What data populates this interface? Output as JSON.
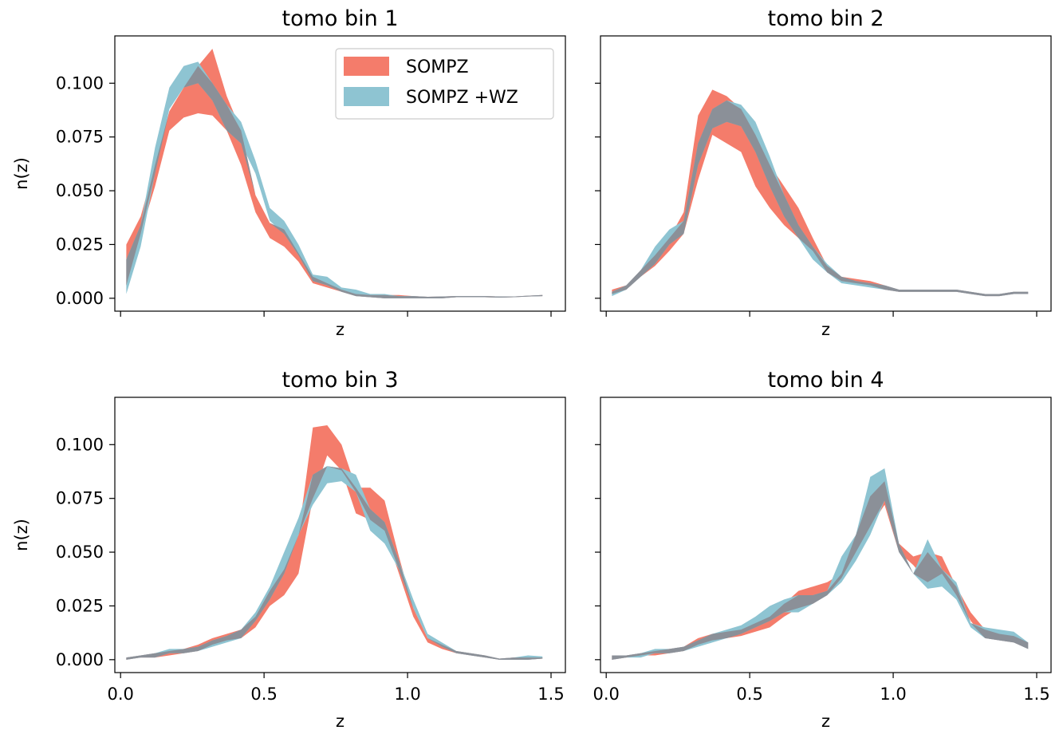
{
  "chart_data": {
    "type": "area",
    "colors": {
      "SOMPZ": "#f47c6b",
      "SOMPZ +WZ": "#8ec4d2",
      "overlap": "#8b9098"
    },
    "legend": {
      "placement": "top-right",
      "panel": 0,
      "entries": [
        "SOMPZ",
        "SOMPZ +WZ"
      ]
    },
    "z": [
      0.02,
      0.07,
      0.12,
      0.17,
      0.22,
      0.27,
      0.32,
      0.37,
      0.42,
      0.47,
      0.52,
      0.57,
      0.62,
      0.67,
      0.72,
      0.77,
      0.82,
      0.87,
      0.92,
      0.97,
      1.02,
      1.07,
      1.12,
      1.17,
      1.22,
      1.27,
      1.32,
      1.37,
      1.42,
      1.47
    ],
    "xticks": [
      "0.0",
      "0.5",
      "1.0",
      "1.5"
    ],
    "xtick_values": [
      0.0,
      0.5,
      1.0,
      1.5
    ],
    "xlim": [
      -0.02,
      1.55
    ],
    "ylim": [
      -0.006,
      0.122
    ],
    "yticks": [
      "0.000",
      "0.025",
      "0.050",
      "0.075",
      "0.100"
    ],
    "ytick_values": [
      0.0,
      0.025,
      0.05,
      0.075,
      0.1
    ],
    "panels": [
      {
        "title": "tomo bin 1",
        "xlabel": "z",
        "ylabel": "n(z)",
        "series": [
          {
            "name": "SOMPZ",
            "lower": [
              0.006,
              0.03,
              0.052,
              0.078,
              0.084,
              0.086,
              0.085,
              0.078,
              0.062,
              0.04,
              0.028,
              0.024,
              0.017,
              0.007,
              0.005,
              0.003,
              0.001,
              0.0005,
              0.0,
              0.0,
              0.0,
              0.0,
              0.0,
              0.0005,
              0.0005,
              0.0005,
              0.0003,
              0.0005,
              0.0008,
              0.001
            ],
            "upper": [
              0.025,
              0.038,
              0.062,
              0.087,
              0.098,
              0.108,
              0.116,
              0.094,
              0.078,
              0.048,
              0.035,
              0.032,
              0.021,
              0.01,
              0.007,
              0.004,
              0.002,
              0.0015,
              0.0015,
              0.0015,
              0.001,
              0.0007,
              0.0008,
              0.001,
              0.001,
              0.001,
              0.0008,
              0.0008,
              0.0012,
              0.0015
            ]
          },
          {
            "name": "SOMPZ +WZ",
            "lower": [
              0.002,
              0.024,
              0.058,
              0.088,
              0.098,
              0.1,
              0.092,
              0.078,
              0.072,
              0.058,
              0.036,
              0.03,
              0.02,
              0.008,
              0.006,
              0.003,
              0.001,
              0.0005,
              0.0,
              0.0,
              0.0,
              0.0,
              0.0,
              0.0005,
              0.0005,
              0.0005,
              0.0003,
              0.0005,
              0.0008,
              0.001
            ],
            "upper": [
              0.018,
              0.034,
              0.07,
              0.098,
              0.108,
              0.11,
              0.1,
              0.09,
              0.082,
              0.064,
              0.042,
              0.036,
              0.025,
              0.011,
              0.01,
              0.005,
              0.004,
              0.002,
              0.002,
              0.001,
              0.001,
              0.0007,
              0.0008,
              0.001,
              0.001,
              0.001,
              0.0008,
              0.0008,
              0.0012,
              0.0015
            ]
          }
        ]
      },
      {
        "title": "tomo bin 2",
        "xlabel": "z",
        "ylabel": "",
        "series": [
          {
            "name": "SOMPZ",
            "lower": [
              0.002,
              0.004,
              0.01,
              0.015,
              0.022,
              0.03,
              0.055,
              0.076,
              0.072,
              0.068,
              0.052,
              0.042,
              0.034,
              0.028,
              0.022,
              0.012,
              0.008,
              0.007,
              0.006,
              0.004,
              0.003,
              0.003,
              0.003,
              0.003,
              0.003,
              0.002,
              0.001,
              0.001,
              0.002,
              0.002
            ],
            "upper": [
              0.004,
              0.006,
              0.013,
              0.02,
              0.028,
              0.04,
              0.085,
              0.097,
              0.094,
              0.088,
              0.076,
              0.062,
              0.052,
              0.042,
              0.028,
              0.015,
              0.01,
              0.009,
              0.008,
              0.006,
              0.004,
              0.004,
              0.004,
              0.004,
              0.004,
              0.003,
              0.002,
              0.002,
              0.003,
              0.003
            ]
          },
          {
            "name": "SOMPZ +WZ",
            "lower": [
              0.001,
              0.004,
              0.01,
              0.016,
              0.025,
              0.03,
              0.062,
              0.079,
              0.082,
              0.08,
              0.068,
              0.052,
              0.038,
              0.028,
              0.018,
              0.012,
              0.007,
              0.006,
              0.005,
              0.004,
              0.003,
              0.003,
              0.003,
              0.003,
              0.003,
              0.002,
              0.001,
              0.001,
              0.002,
              0.002
            ],
            "upper": [
              0.003,
              0.006,
              0.013,
              0.024,
              0.032,
              0.036,
              0.072,
              0.088,
              0.092,
              0.09,
              0.082,
              0.066,
              0.048,
              0.034,
              0.024,
              0.016,
              0.01,
              0.008,
              0.007,
              0.006,
              0.004,
              0.004,
              0.004,
              0.004,
              0.004,
              0.003,
              0.002,
              0.002,
              0.003,
              0.003
            ]
          }
        ]
      },
      {
        "title": "tomo bin 3",
        "xlabel": "z",
        "ylabel": "n(z)",
        "series": [
          {
            "name": "SOMPZ",
            "lower": [
              0.0,
              0.001,
              0.001,
              0.002,
              0.003,
              0.004,
              0.007,
              0.009,
              0.01,
              0.015,
              0.025,
              0.03,
              0.04,
              0.075,
              0.095,
              0.088,
              0.068,
              0.065,
              0.06,
              0.04,
              0.02,
              0.008,
              0.005,
              0.003,
              0.002,
              0.001,
              0.0,
              0.0,
              0.0,
              0.0005
            ],
            "upper": [
              0.001,
              0.002,
              0.003,
              0.004,
              0.005,
              0.007,
              0.01,
              0.012,
              0.014,
              0.02,
              0.032,
              0.042,
              0.058,
              0.108,
              0.109,
              0.1,
              0.08,
              0.08,
              0.074,
              0.048,
              0.024,
              0.01,
              0.007,
              0.004,
              0.003,
              0.002,
              0.0005,
              0.001,
              0.001,
              0.001
            ]
          },
          {
            "name": "SOMPZ +WZ",
            "lower": [
              0.0,
              0.001,
              0.001,
              0.003,
              0.003,
              0.004,
              0.006,
              0.008,
              0.01,
              0.018,
              0.028,
              0.04,
              0.058,
              0.072,
              0.082,
              0.083,
              0.078,
              0.06,
              0.054,
              0.042,
              0.024,
              0.01,
              0.006,
              0.003,
              0.002,
              0.001,
              0.0,
              0.0,
              0.0,
              0.0005
            ],
            "upper": [
              0.001,
              0.002,
              0.003,
              0.005,
              0.005,
              0.006,
              0.009,
              0.011,
              0.014,
              0.022,
              0.034,
              0.05,
              0.066,
              0.086,
              0.09,
              0.089,
              0.086,
              0.07,
              0.064,
              0.046,
              0.028,
              0.012,
              0.008,
              0.004,
              0.003,
              0.002,
              0.0005,
              0.001,
              0.002,
              0.0015
            ]
          }
        ]
      },
      {
        "title": "tomo bin 4",
        "xlabel": "z",
        "ylabel": "",
        "series": [
          {
            "name": "SOMPZ",
            "lower": [
              0.0,
              0.001,
              0.002,
              0.002,
              0.003,
              0.004,
              0.007,
              0.009,
              0.01,
              0.011,
              0.013,
              0.015,
              0.02,
              0.024,
              0.026,
              0.03,
              0.038,
              0.05,
              0.062,
              0.072,
              0.05,
              0.044,
              0.036,
              0.04,
              0.03,
              0.018,
              0.01,
              0.009,
              0.008,
              0.005
            ],
            "upper": [
              0.002,
              0.002,
              0.003,
              0.004,
              0.005,
              0.006,
              0.01,
              0.012,
              0.013,
              0.014,
              0.017,
              0.02,
              0.026,
              0.032,
              0.034,
              0.036,
              0.04,
              0.058,
              0.076,
              0.083,
              0.054,
              0.048,
              0.05,
              0.048,
              0.034,
              0.022,
              0.014,
              0.012,
              0.011,
              0.008
            ]
          },
          {
            "name": "SOMPZ +WZ",
            "lower": [
              0.0,
              0.001,
              0.001,
              0.003,
              0.003,
              0.004,
              0.006,
              0.008,
              0.01,
              0.012,
              0.015,
              0.018,
              0.022,
              0.022,
              0.026,
              0.03,
              0.036,
              0.046,
              0.058,
              0.074,
              0.05,
              0.04,
              0.033,
              0.034,
              0.028,
              0.015,
              0.01,
              0.009,
              0.008,
              0.005
            ],
            "upper": [
              0.002,
              0.002,
              0.003,
              0.005,
              0.005,
              0.006,
              0.009,
              0.012,
              0.014,
              0.016,
              0.02,
              0.025,
              0.028,
              0.03,
              0.03,
              0.032,
              0.048,
              0.058,
              0.085,
              0.089,
              0.054,
              0.04,
              0.056,
              0.042,
              0.036,
              0.017,
              0.015,
              0.014,
              0.013,
              0.008
            ]
          }
        ]
      }
    ]
  }
}
